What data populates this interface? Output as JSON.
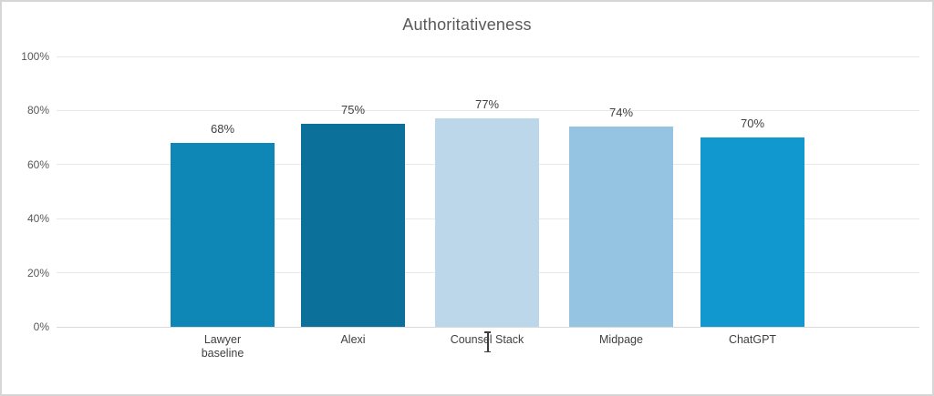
{
  "window": {
    "background": "#ffffff",
    "frame_border_color": "#d6d6d6"
  },
  "chart_data": {
    "type": "bar",
    "title": "Authoritativeness",
    "title_color": "#595959",
    "categories": [
      "Lawyer baseline",
      "Alexi",
      "Counsel Stack",
      "Midpage",
      "ChatGPT"
    ],
    "display_labels": [
      "Lawyer\nbaseline",
      "Alexi",
      "Counsel Stack",
      "Midpage",
      "ChatGPT"
    ],
    "values": [
      68,
      75,
      77,
      74,
      70
    ],
    "data_labels": [
      "68%",
      "75%",
      "77%",
      "74%",
      "70%"
    ],
    "bar_colors": [
      "#0E86B6",
      "#0B719B",
      "#BCD6EA",
      "#95C3E2",
      "#1199CF"
    ],
    "xlabel": "",
    "ylabel": "",
    "ylim": [
      0,
      100
    ],
    "y_tick_values": [
      0,
      20,
      40,
      60,
      80,
      100
    ],
    "y_tick_labels": [
      "0%",
      "20%",
      "40%",
      "60%",
      "80%",
      "100%"
    ],
    "grid": true,
    "gridline_color": "#e8e8e8",
    "axis_line_color": "#d9d9d9",
    "legend_position": "none",
    "label_color": "#404040",
    "tick_label_color": "#595959"
  },
  "cursor": {
    "type": "i-beam-text-cursor"
  }
}
